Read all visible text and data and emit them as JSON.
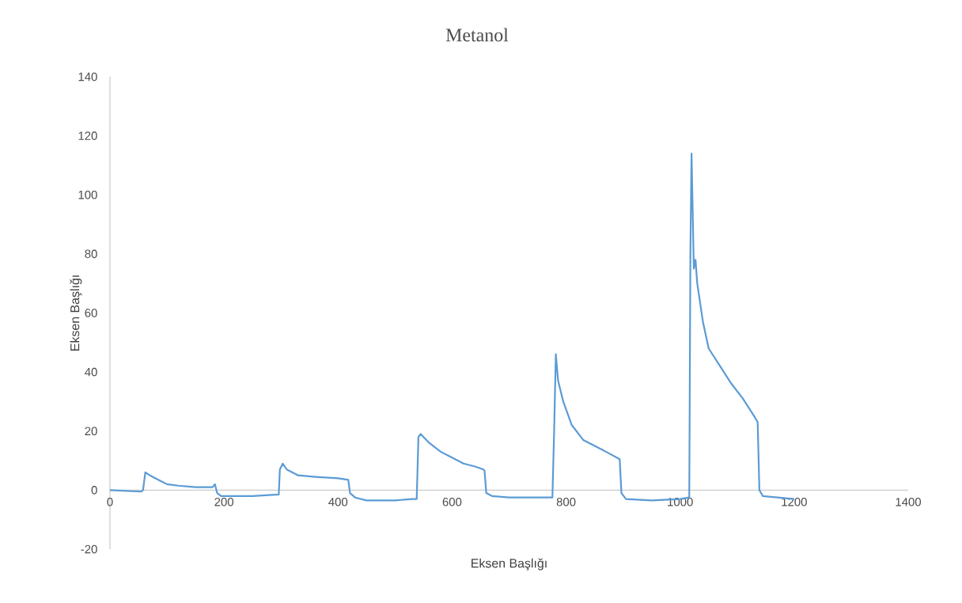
{
  "chart_data": {
    "type": "line",
    "title": "Metanol",
    "xlabel": "Eksen Başlığı",
    "ylabel": "Eksen Başlığı",
    "xlim": [
      0,
      1400
    ],
    "ylim": [
      -20,
      140
    ],
    "xticks": [
      0,
      200,
      400,
      600,
      800,
      1000,
      1200,
      1400
    ],
    "yticks": [
      -20,
      0,
      20,
      40,
      60,
      80,
      100,
      120,
      140
    ],
    "grid": false,
    "marker": "none",
    "line_style": "solid",
    "series": [
      {
        "color": "#5b9bd5",
        "x": [
          0,
          55,
          58,
          62,
          70,
          80,
          90,
          100,
          120,
          150,
          180,
          184,
          188,
          195,
          250,
          296,
          298,
          303,
          310,
          330,
          360,
          400,
          418,
          421,
          430,
          450,
          500,
          530,
          538,
          541,
          545,
          560,
          580,
          600,
          620,
          640,
          655,
          657,
          660,
          670,
          700,
          776,
          779,
          782,
          786,
          795,
          810,
          830,
          850,
          870,
          894,
          897,
          905,
          950,
          1000,
          1016,
          1018,
          1020,
          1024,
          1027,
          1030,
          1040,
          1050,
          1070,
          1090,
          1110,
          1130,
          1136,
          1139,
          1145,
          1200
        ],
        "values": [
          0,
          -0.5,
          0,
          6,
          5,
          4,
          3,
          2,
          1.5,
          1,
          1,
          2,
          -1,
          -2,
          -2,
          -1.5,
          7,
          9,
          7,
          5,
          4.5,
          4,
          3.5,
          -1,
          -2.5,
          -3.5,
          -3.5,
          -3,
          -3,
          18,
          19,
          16,
          13,
          11,
          9,
          8,
          7,
          6.5,
          -1,
          -2,
          -2.5,
          -2.5,
          20,
          46,
          37,
          30,
          22,
          17,
          15,
          13,
          10.5,
          -1,
          -3,
          -3.5,
          -3,
          -2.5,
          80,
          114,
          75,
          78,
          70,
          57,
          48,
          42,
          36,
          31,
          25,
          23,
          0,
          -2,
          -3
        ]
      }
    ]
  }
}
